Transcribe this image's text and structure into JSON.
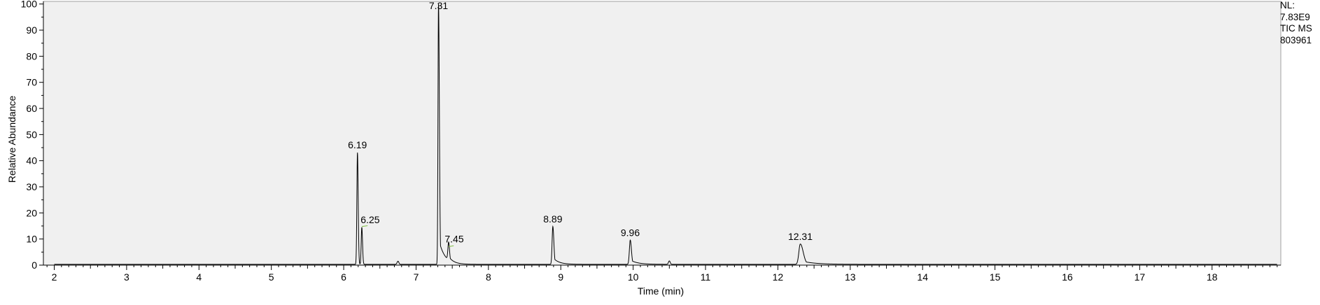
{
  "chart_data": {
    "type": "line",
    "xlabel": "Time (min)",
    "ylabel": "Relative Abundance",
    "xlim": [
      1.85,
      18.95
    ],
    "ylim": [
      0,
      101
    ],
    "x_ticks": [
      "2",
      "3",
      "4",
      "5",
      "6",
      "7",
      "8",
      "9",
      "10",
      "11",
      "12",
      "13",
      "14",
      "15",
      "16",
      "17",
      "18"
    ],
    "y_ticks": [
      "0",
      "10",
      "20",
      "30",
      "40",
      "50",
      "60",
      "70",
      "80",
      "90",
      "100"
    ],
    "grid": false,
    "peaks": [
      {
        "rt": 6.19,
        "height": 42.8,
        "label": "6.19"
      },
      {
        "rt": 6.25,
        "height": 14.2,
        "label": "6.25"
      },
      {
        "rt": 7.31,
        "height": 100,
        "label": "7.31"
      },
      {
        "rt": 7.45,
        "height": 6.8,
        "label": "7.45"
      },
      {
        "rt": 8.89,
        "height": 14.5,
        "label": "8.89"
      },
      {
        "rt": 9.96,
        "height": 9.3,
        "label": "9.96"
      },
      {
        "rt": 12.31,
        "height": 7.8,
        "label": "12.31"
      }
    ],
    "minor_peaks": [
      {
        "rt": 6.75,
        "height": 1.2
      },
      {
        "rt": 10.5,
        "height": 1.3
      }
    ],
    "colors": {
      "trace": "#000000",
      "plot_bg": "#f0f0f0",
      "annotation": "#7fbf3f"
    }
  },
  "info": {
    "nl_label": "NL:",
    "nl_value": "7.83E9",
    "scan_filter": "TIC  MS",
    "file_id": "803961"
  }
}
